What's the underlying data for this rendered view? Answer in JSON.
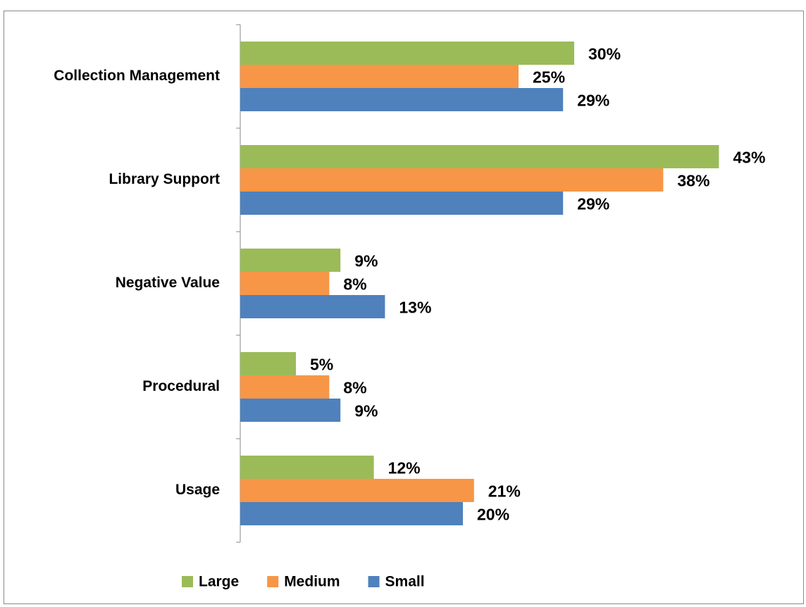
{
  "chart_data": {
    "type": "bar",
    "orientation": "horizontal",
    "categories": [
      "Collection Management",
      "Library Support",
      "Negative Value",
      "Procedural",
      "Usage"
    ],
    "series": [
      {
        "name": "Large",
        "color": "#9bbb59",
        "values": [
          30,
          43,
          9,
          5,
          12
        ],
        "value_labels": [
          "30%",
          "43%",
          "9%",
          "5%",
          "12%"
        ]
      },
      {
        "name": "Medium",
        "color": "#f79646",
        "values": [
          25,
          38,
          8,
          8,
          21
        ],
        "value_labels": [
          "25%",
          "38%",
          "8%",
          "8%",
          "21%"
        ]
      },
      {
        "name": "Small",
        "color": "#4f81bd",
        "values": [
          29,
          29,
          13,
          9,
          20
        ],
        "value_labels": [
          "29%",
          "29%",
          "13%",
          "9%",
          "20%"
        ]
      }
    ],
    "xlim": [
      0,
      50
    ],
    "legend": "bottom"
  }
}
